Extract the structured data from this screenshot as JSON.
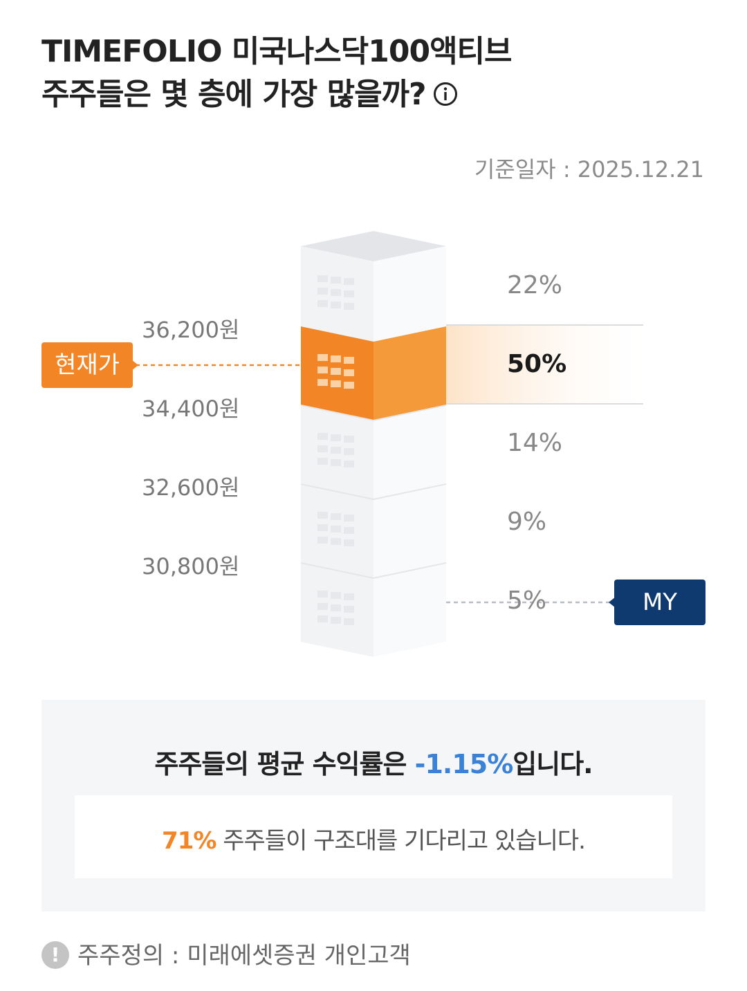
{
  "header": {
    "title_line1": "TIMEFOLIO 미국나스닥100액티브",
    "title_line2": "주주들은 몇 층에 가장 많을까?",
    "info_icon": "info-icon"
  },
  "base_date": "기준일자 : 2025.12.21",
  "chart_data": {
    "type": "bar",
    "price_levels": [
      "36,200원",
      "34,400원",
      "32,600원",
      "30,800원"
    ],
    "floors": [
      {
        "percent_label": "22%",
        "value": 22,
        "highlight": false
      },
      {
        "percent_label": "50%",
        "value": 50,
        "highlight": true
      },
      {
        "percent_label": "14%",
        "value": 14,
        "highlight": false
      },
      {
        "percent_label": "9%",
        "value": 9,
        "highlight": false
      },
      {
        "percent_label": "5%",
        "value": 5,
        "highlight": false
      }
    ],
    "current_price_label": "현재가",
    "my_label": "MY",
    "colors": {
      "highlight": "#f28627",
      "my": "#0e3a6f",
      "building": "#eef0f2"
    }
  },
  "summary": {
    "prefix": "주주들의 평균 수익률은 ",
    "value": "-1.15%",
    "suffix": "입니다."
  },
  "rescue": {
    "value": "71%",
    "text": " 주주들이 구조대를 기다리고 있습니다."
  },
  "footnote": {
    "icon": "exclamation-icon",
    "text": "주주정의 : 미래에셋증권 개인고객"
  }
}
